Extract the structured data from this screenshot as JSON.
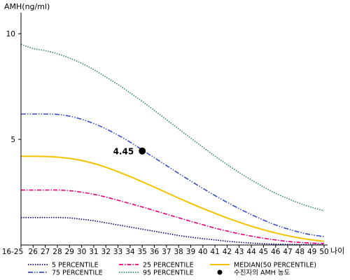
{
  "chart_data": {
    "type": "line",
    "ylabel": "AMH(ng/ml)",
    "xlabel": "나이",
    "categories": [
      "16-25",
      "26",
      "27",
      "28",
      "29",
      "30",
      "31",
      "32",
      "33",
      "34",
      "35",
      "36",
      "37",
      "38",
      "39",
      "40",
      "41",
      "42",
      "43",
      "44",
      "45",
      "46",
      "47",
      "48",
      "49",
      "50"
    ],
    "y_ticks": [
      "5",
      "10"
    ],
    "ylim": [
      0,
      11
    ],
    "grid": false,
    "legend_position": "bottom",
    "series": [
      {
        "name": "5 PERCENTILE",
        "color": "#000080",
        "dash": "dotted",
        "values": [
          1.3,
          1.3,
          1.3,
          1.3,
          1.28,
          1.22,
          1.15,
          1.05,
          0.95,
          0.85,
          0.75,
          0.65,
          0.55,
          0.45,
          0.37,
          0.3,
          0.24,
          0.18,
          0.13,
          0.09,
          0.06,
          0.04,
          0.03,
          0.02,
          0.02,
          0.02
        ]
      },
      {
        "name": "25 PERCENTILE",
        "color": "#e6007e",
        "dash": "dashdot",
        "values": [
          2.6,
          2.6,
          2.6,
          2.6,
          2.57,
          2.5,
          2.4,
          2.27,
          2.12,
          1.96,
          1.8,
          1.63,
          1.46,
          1.29,
          1.12,
          0.96,
          0.8,
          0.66,
          0.53,
          0.42,
          0.32,
          0.24,
          0.17,
          0.12,
          0.09,
          0.07
        ]
      },
      {
        "name": "MEDIAN(50 PERCENTILE)",
        "color": "#f5c400",
        "dash": "solid",
        "values": [
          4.2,
          4.2,
          4.19,
          4.16,
          4.1,
          4.0,
          3.86,
          3.68,
          3.47,
          3.24,
          2.99,
          2.74,
          2.48,
          2.22,
          1.97,
          1.73,
          1.5,
          1.28,
          1.08,
          0.89,
          0.72,
          0.57,
          0.44,
          0.33,
          0.24,
          0.18
        ]
      },
      {
        "name": "75 PERCENTILE",
        "color": "#3b4fc4",
        "dash": "dashdotdot",
        "values": [
          6.2,
          6.2,
          6.2,
          6.18,
          6.1,
          5.95,
          5.75,
          5.5,
          5.2,
          4.87,
          4.5,
          4.13,
          3.76,
          3.39,
          3.03,
          2.68,
          2.34,
          2.02,
          1.72,
          1.44,
          1.18,
          0.95,
          0.76,
          0.6,
          0.48,
          0.4
        ]
      },
      {
        "name": "95 PERCENTILE",
        "color": "#2e8b57",
        "dash": "dotted",
        "values": [
          9.5,
          9.3,
          9.2,
          9.05,
          8.85,
          8.6,
          8.3,
          7.95,
          7.6,
          7.2,
          6.8,
          6.37,
          5.93,
          5.5,
          5.06,
          4.63,
          4.21,
          3.81,
          3.43,
          3.08,
          2.75,
          2.45,
          2.2,
          1.97,
          1.78,
          1.62
        ]
      }
    ],
    "annotations": [
      {
        "label": "4.45",
        "x": "35",
        "y": 4.45,
        "legend_name": "수진자의 AMH 농도",
        "color": "#000000"
      }
    ]
  }
}
